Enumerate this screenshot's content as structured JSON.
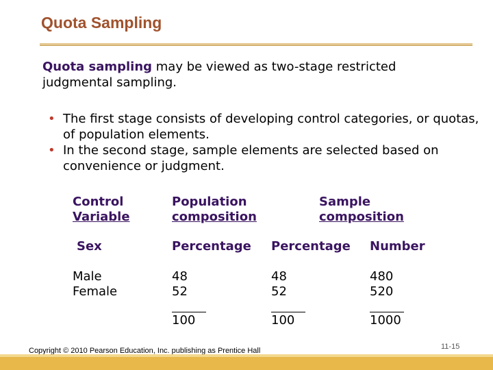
{
  "slide": {
    "title": "Quota Sampling",
    "intro_highlight": "Quota sampling",
    "intro_rest": " may be viewed as two-stage restricted judgmental sampling.",
    "bullets": [
      "The first stage consists of developing control categories, or quotas, of population elements.",
      "In the second stage, sample elements are selected based on convenience or judgment."
    ]
  },
  "table": {
    "headers": {
      "control_line1": "Control",
      "control_line2": "Variable",
      "population_line1": "Population",
      "population_line2": "composition",
      "sample_line1": "Sample",
      "sample_line2": "composition"
    },
    "subheaders": {
      "variable": "Sex",
      "pct1": "Percentage",
      "pct2": "Percentage",
      "number": "Number"
    },
    "rows": [
      {
        "label": "Male",
        "pop_pct": "48",
        "samp_pct": "48",
        "samp_num": "480"
      },
      {
        "label": "Female",
        "pop_pct": "52",
        "samp_pct": "52",
        "samp_num": "520"
      }
    ],
    "totals": {
      "pop_pct": "100",
      "samp_pct": "100",
      "samp_num": "1000"
    }
  },
  "footer": {
    "copyright": "Copyright © 2010 Pearson Education, Inc. publishing as Prentice Hall",
    "page_number": "11-15"
  },
  "colors": {
    "title": "#a0522d",
    "highlight": "#3a1460",
    "bullet": "#c0392b",
    "bottom_bar": "#e8b84b"
  }
}
